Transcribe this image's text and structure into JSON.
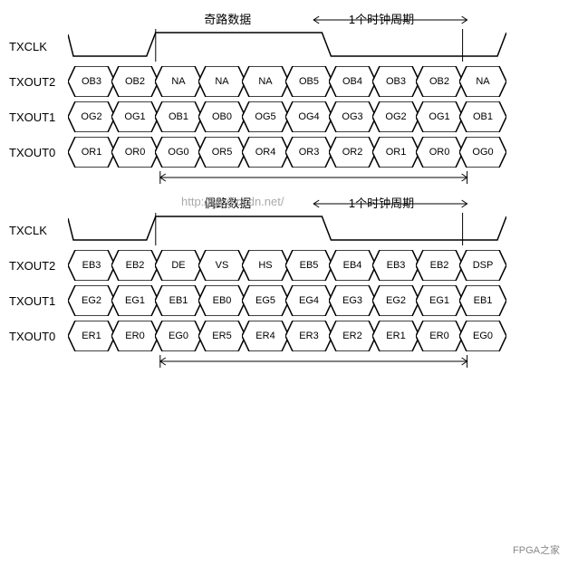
{
  "colors": {
    "stroke": "#000000",
    "bg": "#ffffff",
    "watermark": "#b0b0b0"
  },
  "stroke_width": 1.5,
  "hex": {
    "width": 52,
    "height": 34,
    "tip": 8
  },
  "blocks": [
    {
      "title_left": "奇路数据",
      "title_right": "1个时钟周期",
      "clk_label": "TXCLK",
      "clk_rise_at": 2,
      "clk_fall_at": 6,
      "clk_total": 10,
      "rows": [
        {
          "label": "TXOUT2",
          "cells": [
            "OB3",
            "OB2",
            "NA",
            "NA",
            "NA",
            "OB5",
            "OB4",
            "OB3",
            "OB2",
            "NA"
          ]
        },
        {
          "label": "TXOUT1",
          "cells": [
            "OG2",
            "OG1",
            "OB1",
            "OB0",
            "OG5",
            "OG4",
            "OG3",
            "OG2",
            "OG1",
            "OB1"
          ]
        },
        {
          "label": "TXOUT0",
          "cells": [
            "OR1",
            "OR0",
            "OG0",
            "OR5",
            "OR4",
            "OR3",
            "OR2",
            "OR1",
            "OR0",
            "OG0"
          ]
        }
      ],
      "arrow_from": 2,
      "arrow_to": 9
    },
    {
      "title_left": "偶路数据",
      "title_right": "1个时钟周期",
      "clk_label": "TXCLK",
      "clk_rise_at": 2,
      "clk_fall_at": 6,
      "clk_total": 10,
      "rows": [
        {
          "label": "TXOUT2",
          "cells": [
            "EB3",
            "EB2",
            "DE",
            "VS",
            "HS",
            "EB5",
            "EB4",
            "EB3",
            "EB2",
            "DSP"
          ]
        },
        {
          "label": "TXOUT1",
          "cells": [
            "EG2",
            "EG1",
            "EB1",
            "EB0",
            "EG5",
            "EG4",
            "EG3",
            "EG2",
            "EG1",
            "EB1"
          ]
        },
        {
          "label": "TXOUT0",
          "cells": [
            "ER1",
            "ER0",
            "EG0",
            "ER5",
            "ER4",
            "ER3",
            "ER2",
            "ER1",
            "ER0",
            "EG0"
          ]
        }
      ],
      "arrow_from": 2,
      "arrow_to": 9,
      "watermark": "http://blog.csdn.net/"
    }
  ],
  "footer": "FPGA之家"
}
